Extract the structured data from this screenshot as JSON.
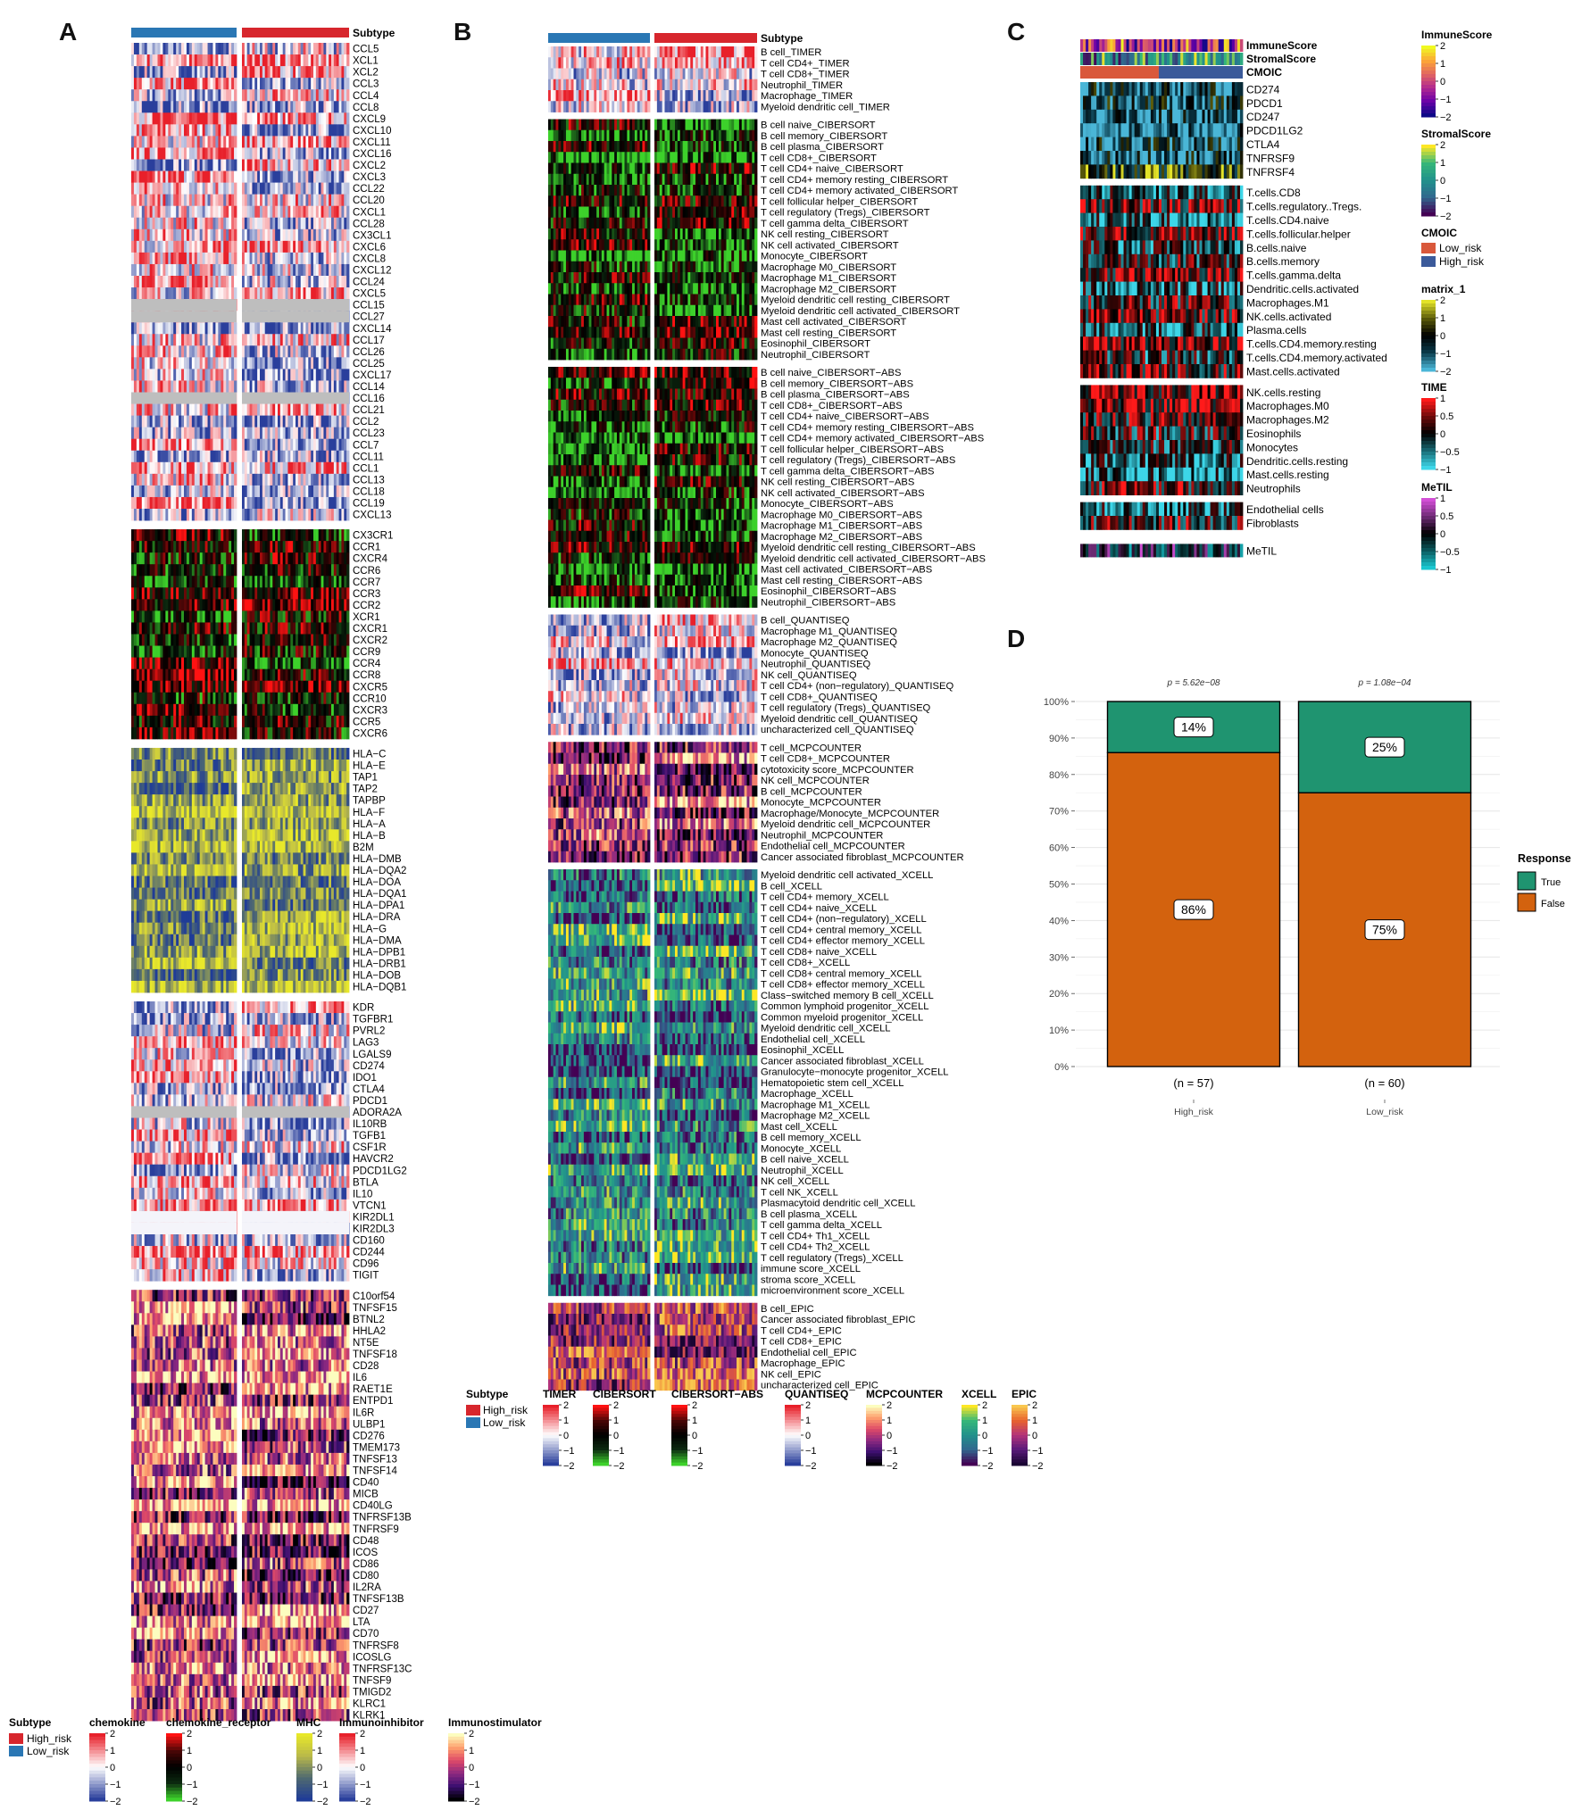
{
  "panels": {
    "a": "A",
    "b": "B",
    "c": "C",
    "d": "D"
  },
  "colors": {
    "high_risk": "#d7262d",
    "low_risk": "#2a77b4",
    "cmoic_low": "#d9583b",
    "cmoic_high": "#3b5a9a",
    "resp_true": "#1f9470",
    "resp_false": "#d3620e"
  },
  "panel_a": {
    "header": "Subtype",
    "subtype_legend": {
      "title": "Subtype",
      "items": [
        "High_risk",
        "Low_risk"
      ]
    },
    "blocks": [
      {
        "name": "chemokine",
        "genes": [
          "CCL5",
          "XCL1",
          "XCL2",
          "CCL3",
          "CCL4",
          "CCL8",
          "CXCL9",
          "CXCL10",
          "CXCL11",
          "CXCL16",
          "CXCL2",
          "CXCL3",
          "CCL22",
          "CCL20",
          "CXCL1",
          "CCL28",
          "CX3CL1",
          "CXCL6",
          "CXCL8",
          "CXCL12",
          "CCL24",
          "CXCL5",
          "CCL15",
          "CCL27",
          "CXCL14",
          "CCL17",
          "CCL26",
          "CCL25",
          "CXCL17",
          "CCL14",
          "CCL16",
          "CCL21",
          "CCL2",
          "CCL23",
          "CCL7",
          "CCL11",
          "CCL1",
          "CCL13",
          "CCL18",
          "CCL19",
          "CXCL13"
        ]
      },
      {
        "name": "chemokine_receptor",
        "genes": [
          "CX3CR1",
          "CCR1",
          "CXCR4",
          "CCR6",
          "CCR7",
          "CCR3",
          "CCR2",
          "XCR1",
          "CXCR1",
          "CXCR2",
          "CCR9",
          "CCR4",
          "CCR8",
          "CXCR5",
          "CCR10",
          "CXCR3",
          "CCR5",
          "CXCR6"
        ]
      },
      {
        "name": "MHC",
        "genes": [
          "HLA−C",
          "HLA−E",
          "TAP1",
          "TAP2",
          "TAPBP",
          "HLA−F",
          "HLA−A",
          "HLA−B",
          "B2M",
          "HLA−DMB",
          "HLA−DQA2",
          "HLA−DOA",
          "HLA−DQA1",
          "HLA−DPA1",
          "HLA−DRA",
          "HLA−G",
          "HLA−DMA",
          "HLA−DPB1",
          "HLA−DRB1",
          "HLA−DOB",
          "HLA−DQB1"
        ]
      },
      {
        "name": "Immunoinhibitor",
        "genes": [
          "KDR",
          "TGFBR1",
          "PVRL2",
          "LAG3",
          "LGALS9",
          "CD274",
          "IDO1",
          "CTLA4",
          "PDCD1",
          "ADORA2A",
          "IL10RB",
          "TGFB1",
          "CSF1R",
          "HAVCR2",
          "PDCD1LG2",
          "BTLA",
          "IL10",
          "VTCN1",
          "KIR2DL1",
          "KIR2DL3",
          "CD160",
          "CD244",
          "CD96",
          "TIGIT"
        ]
      },
      {
        "name": "Immunostimulator",
        "genes": [
          "C10orf54",
          "TNFSF15",
          "BTNL2",
          "HHLA2",
          "NT5E",
          "TNFSF18",
          "CD28",
          "IL6",
          "RAET1E",
          "ENTPD1",
          "IL6R",
          "ULBP1",
          "CD276",
          "TMEM173",
          "TNFSF13",
          "TNFSF14",
          "CD40",
          "MICB",
          "CD40LG",
          "TNFRSF13B",
          "TNFRSF9",
          "CD48",
          "ICOS",
          "CD86",
          "CD80",
          "IL2RA",
          "TNFSF13B",
          "CD27",
          "LTA",
          "CD70",
          "TNFRSF8",
          "ICOSLG",
          "TNFRSF13C",
          "TNFSF9",
          "TMIGD2",
          "KLRC1",
          "KLRK1"
        ]
      }
    ],
    "scale_ticks": [
      "2",
      "1",
      "0",
      "−1",
      "−2"
    ]
  },
  "panel_b": {
    "header": "Subtype",
    "subtype_legend": {
      "title": "Subtype",
      "items": [
        "High_risk",
        "Low_risk"
      ]
    },
    "blocks": [
      {
        "name": "TIMER",
        "cells": [
          "B cell_TIMER",
          "T cell CD4+_TIMER",
          "T cell CD8+_TIMER",
          "Neutrophil_TIMER",
          "Macrophage_TIMER",
          "Myeloid dendritic cell_TIMER"
        ]
      },
      {
        "name": "CIBERSORT",
        "cells": [
          "B cell naive_CIBERSORT",
          "B cell memory_CIBERSORT",
          "B cell plasma_CIBERSORT",
          "T cell CD8+_CIBERSORT",
          "T cell CD4+ naive_CIBERSORT",
          "T cell CD4+ memory resting_CIBERSORT",
          "T cell CD4+ memory activated_CIBERSORT",
          "T cell follicular helper_CIBERSORT",
          "T cell regulatory (Tregs)_CIBERSORT",
          "T cell gamma delta_CIBERSORT",
          "NK cell resting_CIBERSORT",
          "NK cell activated_CIBERSORT",
          "Monocyte_CIBERSORT",
          "Macrophage M0_CIBERSORT",
          "Macrophage M1_CIBERSORT",
          "Macrophage M2_CIBERSORT",
          "Myeloid dendritic cell resting_CIBERSORT",
          "Myeloid dendritic cell activated_CIBERSORT",
          "Mast cell activated_CIBERSORT",
          "Mast cell resting_CIBERSORT",
          "Eosinophil_CIBERSORT",
          "Neutrophil_CIBERSORT"
        ]
      },
      {
        "name": "CIBERSORT−ABS",
        "cells": [
          "B cell naive_CIBERSORT−ABS",
          "B cell memory_CIBERSORT−ABS",
          "B cell plasma_CIBERSORT−ABS",
          "T cell CD8+_CIBERSORT−ABS",
          "T cell CD4+ naive_CIBERSORT−ABS",
          "T cell CD4+ memory resting_CIBERSORT−ABS",
          "T cell CD4+ memory activated_CIBERSORT−ABS",
          "T cell follicular helper_CIBERSORT−ABS",
          "T cell regulatory (Tregs)_CIBERSORT−ABS",
          "T cell gamma delta_CIBERSORT−ABS",
          "NK cell resting_CIBERSORT−ABS",
          "NK cell activated_CIBERSORT−ABS",
          "Monocyte_CIBERSORT−ABS",
          "Macrophage M0_CIBERSORT−ABS",
          "Macrophage M1_CIBERSORT−ABS",
          "Macrophage M2_CIBERSORT−ABS",
          "Myeloid dendritic cell resting_CIBERSORT−ABS",
          "Myeloid dendritic cell activated_CIBERSORT−ABS",
          "Mast cell activated_CIBERSORT−ABS",
          "Mast cell resting_CIBERSORT−ABS",
          "Eosinophil_CIBERSORT−ABS",
          "Neutrophil_CIBERSORT−ABS"
        ]
      },
      {
        "name": "QUANTISEQ",
        "cells": [
          "B cell_QUANTISEQ",
          "Macrophage M1_QUANTISEQ",
          "Macrophage M2_QUANTISEQ",
          "Monocyte_QUANTISEQ",
          "Neutrophil_QUANTISEQ",
          "NK cell_QUANTISEQ",
          "T cell CD4+ (non−regulatory)_QUANTISEQ",
          "T cell CD8+_QUANTISEQ",
          "T cell regulatory (Tregs)_QUANTISEQ",
          "Myeloid dendritic cell_QUANTISEQ",
          "uncharacterized cell_QUANTISEQ"
        ]
      },
      {
        "name": "MCPCOUNTER",
        "cells": [
          "T cell_MCPCOUNTER",
          "T cell CD8+_MCPCOUNTER",
          "cytotoxicity score_MCPCOUNTER",
          "NK cell_MCPCOUNTER",
          "B cell_MCPCOUNTER",
          "Monocyte_MCPCOUNTER",
          "Macrophage/Monocyte_MCPCOUNTER",
          "Myeloid dendritic cell_MCPCOUNTER",
          "Neutrophil_MCPCOUNTER",
          "Endothelial cell_MCPCOUNTER",
          "Cancer associated fibroblast_MCPCOUNTER"
        ]
      },
      {
        "name": "XCELL",
        "cells": [
          "Myeloid dendritic cell activated_XCELL",
          "B cell_XCELL",
          "T cell CD4+ memory_XCELL",
          "T cell CD4+ naive_XCELL",
          "T cell CD4+ (non−regulatory)_XCELL",
          "T cell CD4+ central memory_XCELL",
          "T cell CD4+ effector memory_XCELL",
          "T cell CD8+ naive_XCELL",
          "T cell CD8+_XCELL",
          "T cell CD8+ central memory_XCELL",
          "T cell CD8+ effector memory_XCELL",
          "Class−switched memory B cell_XCELL",
          "Common lymphoid progenitor_XCELL",
          "Common myeloid progenitor_XCELL",
          "Myeloid dendritic cell_XCELL",
          "Endothelial cell_XCELL",
          "Eosinophil_XCELL",
          "Cancer associated fibroblast_XCELL",
          "Granulocyte−monocyte progenitor_XCELL",
          "Hematopoietic stem cell_XCELL",
          "Macrophage_XCELL",
          "Macrophage M1_XCELL",
          "Macrophage M2_XCELL",
          "Mast cell_XCELL",
          "B cell memory_XCELL",
          "Monocyte_XCELL",
          "B cell naive_XCELL",
          "Neutrophil_XCELL",
          "NK cell_XCELL",
          "T cell NK_XCELL",
          "Plasmacytoid dendritic cell_XCELL",
          "B cell plasma_XCELL",
          "T cell gamma delta_XCELL",
          "T cell CD4+ Th1_XCELL",
          "T cell CD4+ Th2_XCELL",
          "T cell regulatory (Tregs)_XCELL",
          "immune score_XCELL",
          "stroma score_XCELL",
          "microenvironment score_XCELL"
        ]
      },
      {
        "name": "EPIC",
        "cells": [
          "B cell_EPIC",
          "Cancer associated fibroblast_EPIC",
          "T cell CD4+_EPIC",
          "T cell CD8+_EPIC",
          "Endothelial cell_EPIC",
          "Macrophage_EPIC",
          "NK cell_EPIC",
          "uncharacterized cell_EPIC"
        ]
      }
    ],
    "scale_ticks": [
      "2",
      "1",
      "0",
      "−1",
      "−2"
    ]
  },
  "panel_c": {
    "annotations": [
      "ImmuneScore",
      "StromalScore",
      "CMOIC"
    ],
    "checkpoints": [
      "CD274",
      "PDCD1",
      "CD247",
      "PDCD1LG2",
      "CTLA4",
      "TNFRSF9",
      "TNFRSF4"
    ],
    "time_group1": [
      "T.cells.CD8",
      "T.cells.regulatory..Tregs.",
      "T.cells.CD4.naive",
      "T.cells.follicular.helper",
      "B.cells.naive",
      "B.cells.memory",
      "T.cells.gamma.delta",
      "Dendritic.cells.activated",
      "Macrophages.M1",
      "NK.cells.activated",
      "Plasma.cells",
      "T.cells.CD4.memory.resting",
      "T.cells.CD4.memory.activated",
      "Mast.cells.activated"
    ],
    "time_group2": [
      "NK.cells.resting",
      "Macrophages.M0",
      "Macrophages.M2",
      "Eosinophils",
      "Monocytes",
      "Dendritic.cells.resting",
      "Mast.cells.resting",
      "Neutrophils"
    ],
    "time_group3": [
      "Endothelial cells",
      "Fibroblasts"
    ],
    "metil_row": "MeTIL",
    "legends": [
      {
        "title": "ImmuneScore",
        "ticks": [
          "2",
          "1",
          "0",
          "−1",
          "−2"
        ]
      },
      {
        "title": "StromalScore",
        "ticks": [
          "2",
          "1",
          "0",
          "−1",
          "−2"
        ]
      },
      {
        "title": "CMOIC",
        "items": [
          "Low_risk",
          "High_risk"
        ]
      },
      {
        "title": "matrix_1",
        "ticks": [
          "2",
          "1",
          "0",
          "−1",
          "−2"
        ]
      },
      {
        "title": "TIME",
        "ticks": [
          "1",
          "0.5",
          "0",
          "−0.5",
          "−1"
        ]
      },
      {
        "title": "MeTIL",
        "ticks": [
          "1",
          "0.5",
          "0",
          "−0.5",
          "−1"
        ]
      }
    ]
  },
  "chart_data": {
    "type": "bar",
    "stacked": true,
    "categories": [
      "High_risk",
      "Low_risk"
    ],
    "n_labels": [
      "(n = 57)",
      "(n = 60)"
    ],
    "p_values": [
      "p = 5.62e−08",
      "p = 1.08e−04"
    ],
    "series": [
      {
        "name": "False",
        "values": [
          86,
          75
        ],
        "labels": [
          "86%",
          "75%"
        ]
      },
      {
        "name": "True",
        "values": [
          14,
          25
        ],
        "labels": [
          "14%",
          "25%"
        ]
      }
    ],
    "y_ticks": [
      "0%",
      "10%",
      "20%",
      "30%",
      "40%",
      "50%",
      "60%",
      "70%",
      "80%",
      "90%",
      "100%"
    ],
    "ylim": [
      0,
      100
    ],
    "legend_title": "Response",
    "legend_items": [
      "True",
      "False"
    ],
    "legend_position": "right",
    "grid": true
  }
}
